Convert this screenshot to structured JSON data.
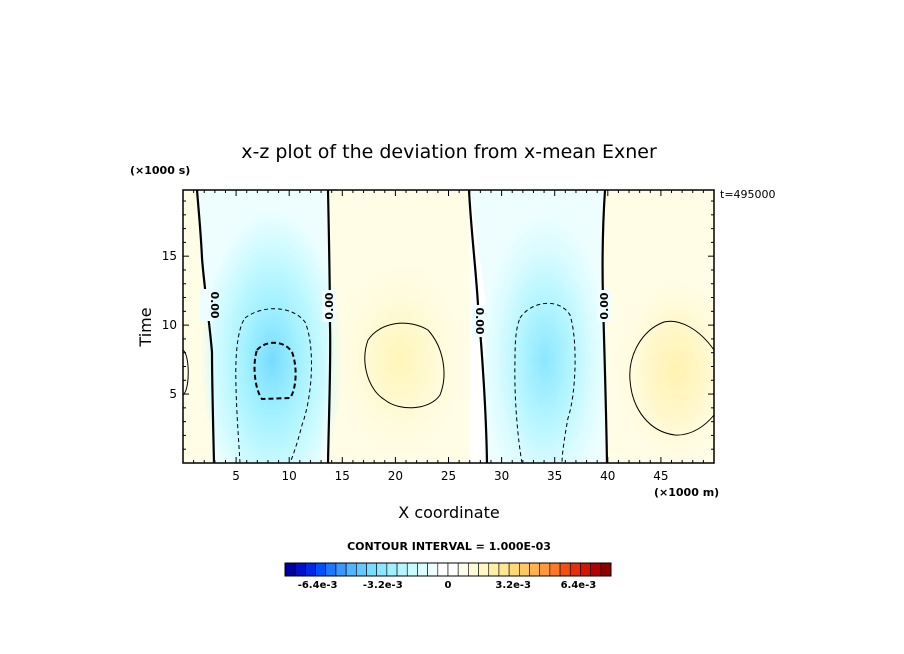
{
  "chart_data": {
    "type": "heatmap",
    "title": "x-z plot of the deviation from x-mean Exner",
    "xlabel": "X coordinate",
    "ylabel": "Time",
    "x_unit": "(×1000 m)",
    "y_unit": "(×1000 s)",
    "time_label": "t=495000",
    "xlim": [
      0,
      50
    ],
    "ylim": [
      0,
      19.8
    ],
    "xticks": [
      5,
      10,
      15,
      20,
      25,
      30,
      35,
      40,
      45
    ],
    "yticks": [
      5,
      10,
      15
    ],
    "contour_interval_label": "CONTOUR INTERVAL = 1.000E-03",
    "zero_contour_label": "0.00",
    "zero_contour_x": [
      3.0,
      13.5,
      27.5,
      39.8
    ],
    "anomalies": [
      {
        "x": 8.4,
        "y": 6.8,
        "sign": "negative",
        "peak": -0.0032
      },
      {
        "x": 20.5,
        "y": 7.5,
        "sign": "positive",
        "peak": 0.0016
      },
      {
        "x": 33.5,
        "y": 6.5,
        "sign": "negative",
        "peak": -0.0026
      },
      {
        "x": 47.0,
        "y": 6.5,
        "sign": "positive",
        "peak": 0.0017
      }
    ],
    "colorbar": {
      "min": -0.008,
      "max": 0.008,
      "tick_labels": [
        "-6.4e-3",
        "-3.2e-3",
        "0",
        "3.2e-3",
        "6.4e-3"
      ],
      "tick_values": [
        -0.0064,
        -0.0032,
        0,
        0.0032,
        0.0064
      ],
      "colors": [
        "#0000a0",
        "#0010c8",
        "#0028e6",
        "#0050ff",
        "#1e78ff",
        "#3c96ff",
        "#50b4ff",
        "#64c8ff",
        "#78dcff",
        "#8ce6ff",
        "#a0f0ff",
        "#b4f5ff",
        "#c8faff",
        "#dcfcff",
        "#eefeff",
        "#ffffff",
        "#ffffff",
        "#ffffee",
        "#fffcd8",
        "#fff8c0",
        "#fff0a8",
        "#ffe690",
        "#ffd878",
        "#ffc864",
        "#ffb450",
        "#ff9a3c",
        "#ff7828",
        "#f05014",
        "#e62e0a",
        "#d21400",
        "#b40000",
        "#8c0000"
      ]
    }
  }
}
